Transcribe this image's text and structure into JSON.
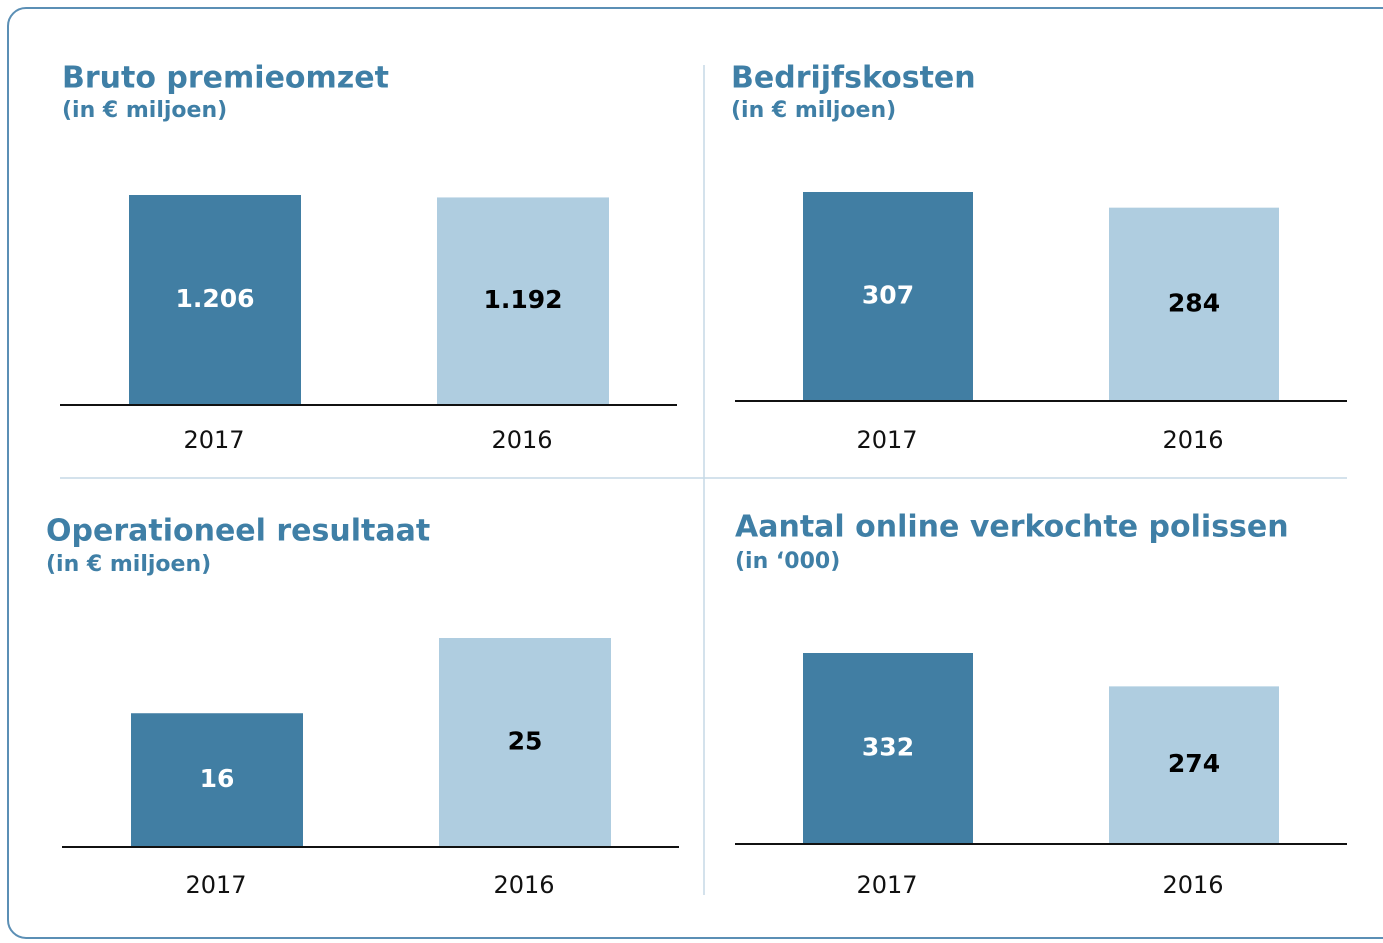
{
  "chart_data": [
    {
      "type": "bar",
      "title": "Bruto premieomzet",
      "subtitle": "(in € miljoen)",
      "categories": [
        "2017",
        "2016"
      ],
      "values": [
        1206,
        1192
      ],
      "value_labels": [
        "1.206",
        "1.192"
      ],
      "colors": [
        "#417ea3",
        "#afcde0"
      ]
    },
    {
      "type": "bar",
      "title": "Bedrijfskosten",
      "subtitle": "(in € miljoen)",
      "categories": [
        "2017",
        "2016"
      ],
      "values": [
        307,
        284
      ],
      "colors": [
        "#417ea3",
        "#afcde0"
      ]
    },
    {
      "type": "bar",
      "title": "Operationeel resultaat",
      "subtitle": "(in € miljoen)",
      "categories": [
        "2017",
        "2016"
      ],
      "values": [
        16,
        25
      ],
      "colors": [
        "#417ea3",
        "#afcde0"
      ]
    },
    {
      "type": "bar",
      "title": "Aantal online verkochte polissen",
      "subtitle": "(in ‘000)",
      "categories": [
        "2017",
        "2016"
      ],
      "values": [
        332,
        274
      ],
      "colors": [
        "#417ea3",
        "#afcde0"
      ]
    }
  ]
}
